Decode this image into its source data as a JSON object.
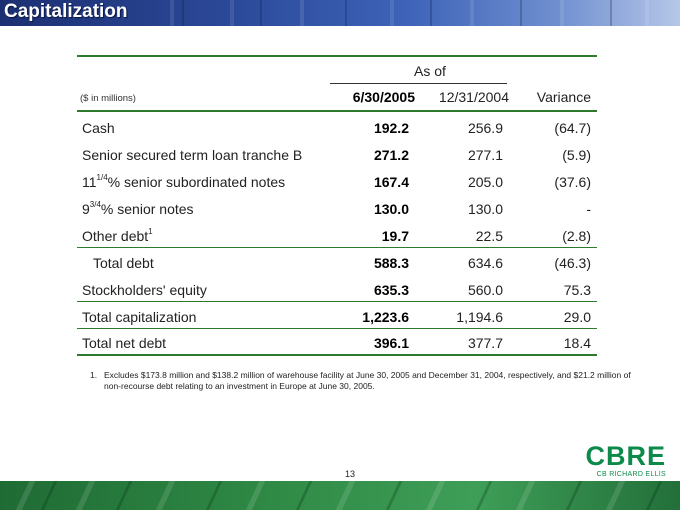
{
  "header": {
    "title": "Capitalization"
  },
  "table": {
    "as_of_label": "As of",
    "units_label": "($ in millions)",
    "columns": [
      "6/30/2005",
      "12/31/2004",
      "Variance"
    ],
    "rows": [
      {
        "label": "Cash",
        "c1": "192.2",
        "c2": "256.9",
        "c3": "(64.7)"
      },
      {
        "label": "Senior secured term loan tranche B",
        "c1": "271.2",
        "c2": "277.1",
        "c3": "(5.9)"
      },
      {
        "label_prefix": "11",
        "label_sup": "1/4",
        "label_suffix": "% senior subordinated notes",
        "c1": "167.4",
        "c2": "205.0",
        "c3": "(37.6)"
      },
      {
        "label_prefix": "9",
        "label_sup": "3/4",
        "label_suffix": "% senior notes",
        "c1": "130.0",
        "c2": "130.0",
        "c3": "-"
      },
      {
        "label_prefix": "Other debt",
        "label_sup": "1",
        "label_suffix": "",
        "c1": "19.7",
        "c2": "22.5",
        "c3": "(2.8)"
      },
      {
        "label": "Total debt",
        "c1": "588.3",
        "c2": "634.6",
        "c3": "(46.3)"
      },
      {
        "label": "Stockholders' equity",
        "c1": "635.3",
        "c2": "560.0",
        "c3": "75.3"
      },
      {
        "label": "Total capitalization",
        "c1": "1,223.6",
        "c2": "1,194.6",
        "c3": "29.0"
      },
      {
        "label": "Total net debt",
        "c1": "396.1",
        "c2": "377.7",
        "c3": "18.4"
      }
    ]
  },
  "footnote": {
    "number": "1.",
    "text": "Excludes $173.8 million and $138.2 million of warehouse facility at June 30, 2005 and December 31, 2004, respectively, and $21.2 million of non-recourse debt relating to an investment in Europe at June 30, 2005."
  },
  "page_number": "13",
  "logo": {
    "main": "CBRE",
    "sub": "CB RICHARD ELLIS"
  },
  "colors": {
    "header": "#2c4a9a",
    "rule": "#2d7a2d",
    "logo": "#0b8a4a",
    "footer": "#2f8a45"
  }
}
